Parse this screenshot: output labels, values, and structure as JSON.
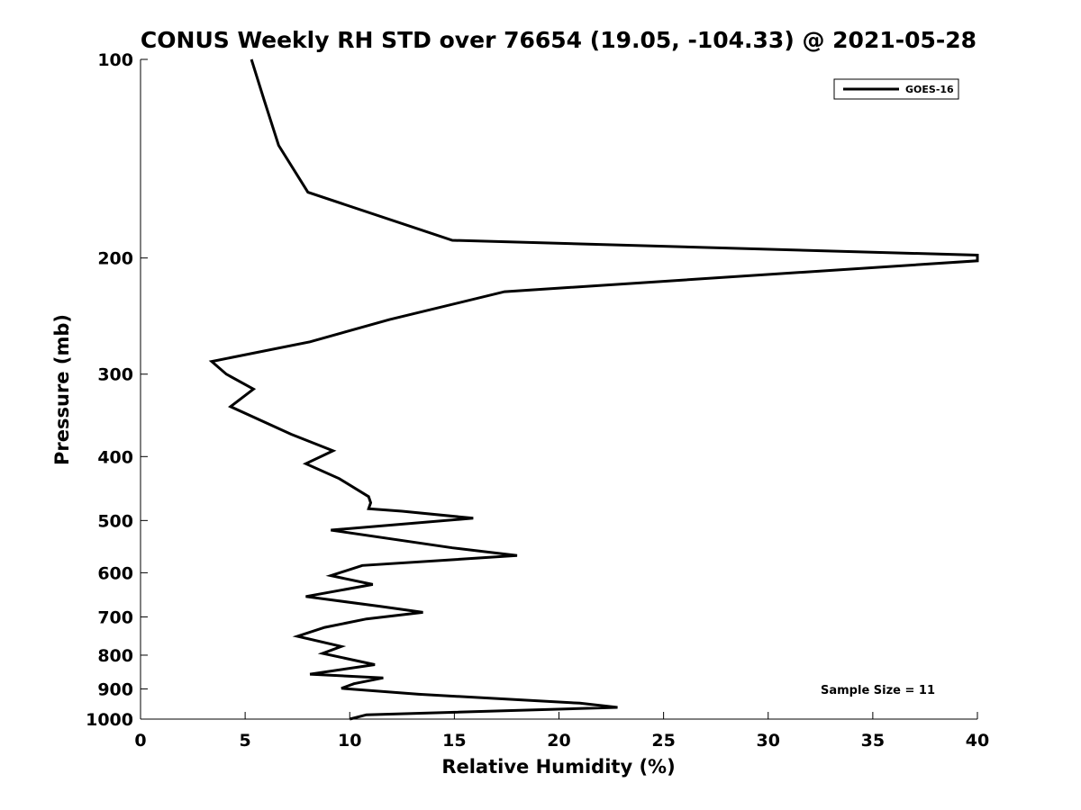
{
  "chart_data": {
    "type": "line",
    "title": "CONUS Weekly RH STD over 76654 (19.05, -104.33) @ 2021-05-28",
    "xlabel": "Relative Humidity (%)",
    "ylabel": "Pressure (mb)",
    "xlim": [
      0,
      40
    ],
    "ylim": [
      100,
      1000
    ],
    "yscale": "log",
    "y_inverted": true,
    "grid": false,
    "legend_position": "top-right",
    "xticks": [
      0,
      5,
      10,
      15,
      20,
      25,
      30,
      35,
      40
    ],
    "xtick_labels": [
      "0",
      "5",
      "10",
      "15",
      "20",
      "25",
      "30",
      "35",
      "40"
    ],
    "yticks": [
      100,
      200,
      300,
      400,
      500,
      600,
      700,
      800,
      900,
      1000
    ],
    "ytick_labels": [
      "100",
      "200",
      "300",
      "400",
      "500",
      "600",
      "700",
      "800",
      "900",
      "1000"
    ],
    "series": [
      {
        "name": "GOES-16",
        "color": "#000000",
        "points": [
          [
            5.3,
            100
          ],
          [
            5.9,
            115
          ],
          [
            6.6,
            135
          ],
          [
            8.0,
            159
          ],
          [
            14.9,
            188
          ],
          [
            40.0,
            198
          ],
          [
            40.0,
            202
          ],
          [
            17.4,
            225
          ],
          [
            11.9,
            248
          ],
          [
            8.1,
            268
          ],
          [
            3.4,
            287
          ],
          [
            4.1,
            300
          ],
          [
            5.4,
            316
          ],
          [
            4.9,
            325
          ],
          [
            4.3,
            336
          ],
          [
            7.2,
            370
          ],
          [
            9.2,
            392
          ],
          [
            7.9,
            410
          ],
          [
            9.5,
            432
          ],
          [
            10.9,
            460
          ],
          [
            11.0,
            470
          ],
          [
            10.9,
            480
          ],
          [
            12.5,
            484
          ],
          [
            15.9,
            496
          ],
          [
            9.1,
            517
          ],
          [
            14.9,
            550
          ],
          [
            18.0,
            565
          ],
          [
            10.6,
            585
          ],
          [
            9.1,
            606
          ],
          [
            11.1,
            625
          ],
          [
            7.9,
            652
          ],
          [
            11.5,
            675
          ],
          [
            13.5,
            689
          ],
          [
            10.8,
            705
          ],
          [
            8.8,
            726
          ],
          [
            7.5,
            749
          ],
          [
            9.6,
            776
          ],
          [
            8.7,
            795
          ],
          [
            11.2,
            827
          ],
          [
            8.1,
            855
          ],
          [
            11.6,
            866
          ],
          [
            10.2,
            884
          ],
          [
            9.6,
            898
          ],
          [
            13.3,
            917
          ],
          [
            21.0,
            946
          ],
          [
            22.8,
            960
          ],
          [
            10.8,
            985
          ],
          [
            10.0,
            1000
          ]
        ]
      }
    ],
    "annotation": "Sample Size = 11"
  }
}
